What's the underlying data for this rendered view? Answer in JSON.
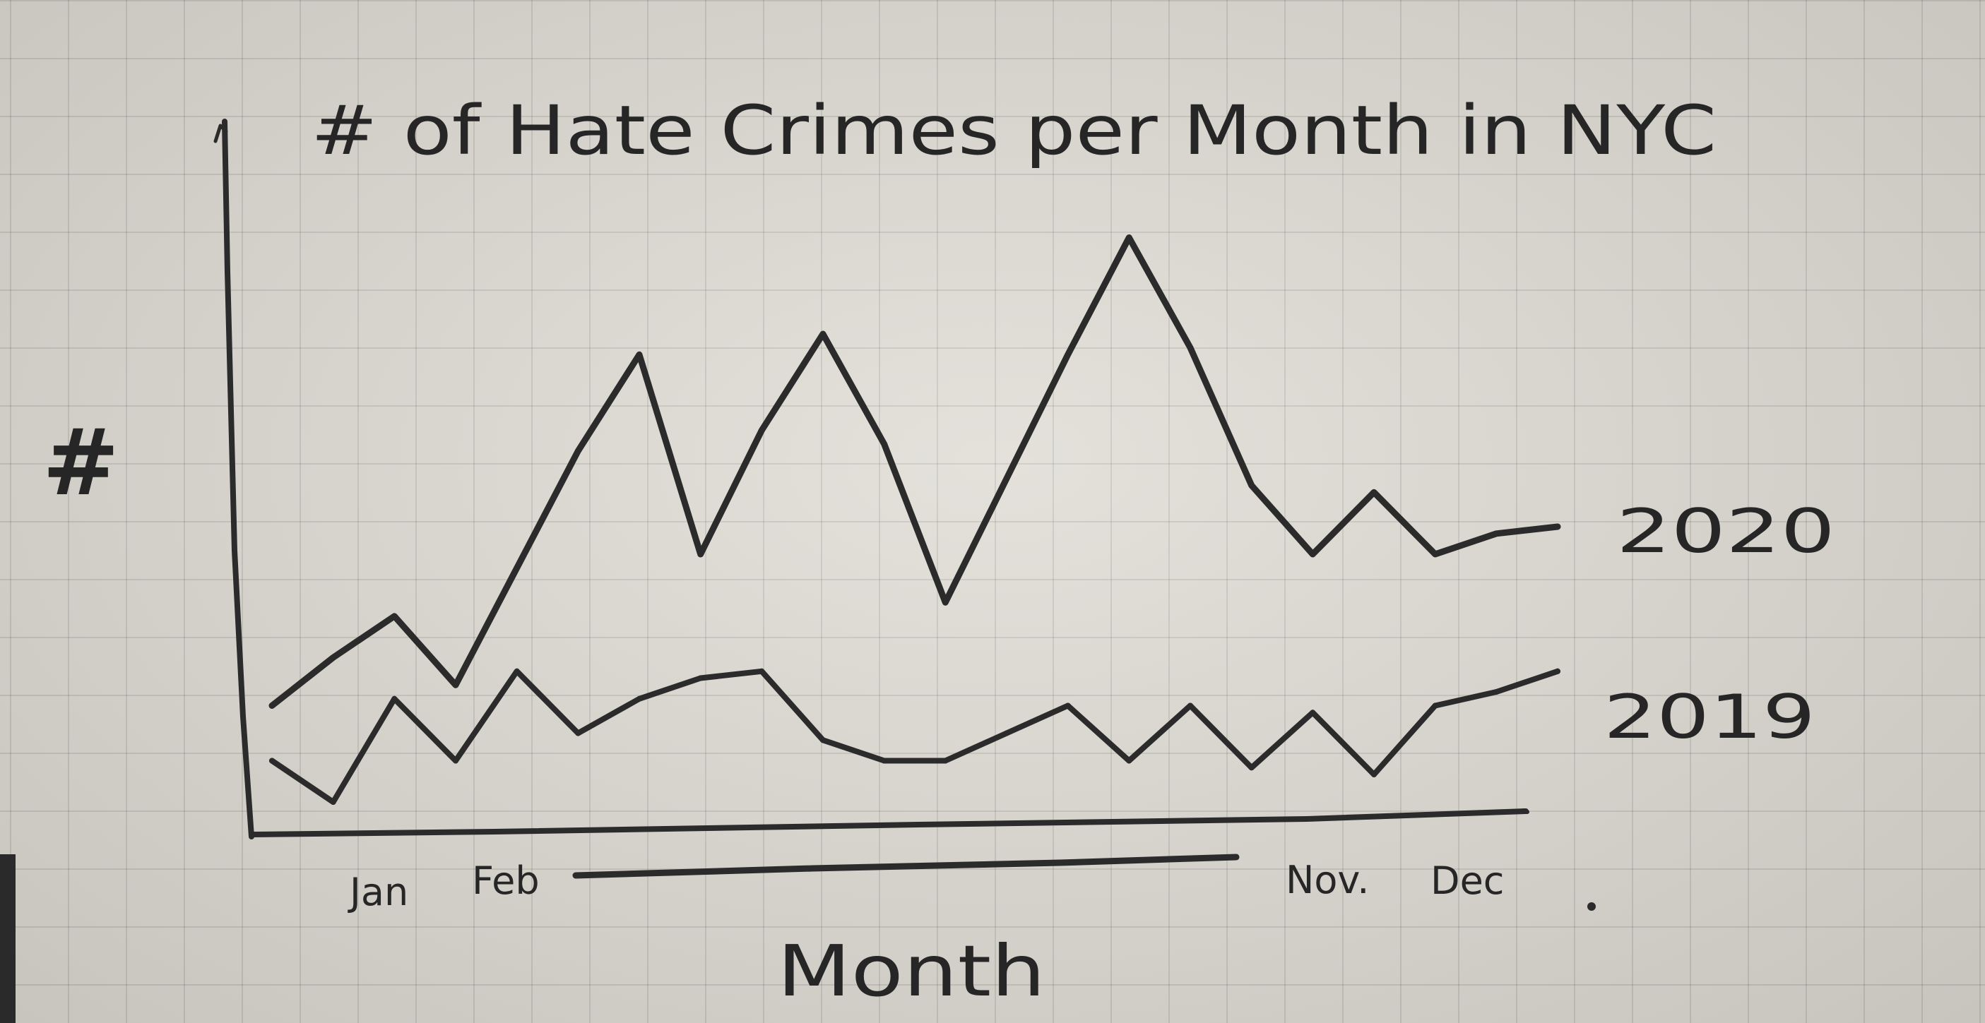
{
  "chart_data": {
    "type": "line",
    "title": "# of Hate Crimes per Month in NYC",
    "xlabel": "Month",
    "ylabel": "#",
    "x_ticks_shown": [
      "Jan",
      "Feb",
      "Nov.",
      "Dec"
    ],
    "x_count": 22,
    "ylim": [
      0,
      10
    ],
    "series": [
      {
        "name": "2020",
        "values": [
          1.8,
          2.5,
          3.1,
          2.1,
          3.8,
          5.5,
          6.9,
          4.0,
          5.8,
          7.2,
          5.6,
          3.3,
          5.1,
          6.9,
          8.6,
          7.0,
          5.0,
          4.0,
          4.9,
          4.0,
          4.3,
          4.4
        ]
      },
      {
        "name": "2019",
        "values": [
          1.0,
          0.4,
          1.9,
          1.0,
          2.3,
          1.4,
          1.9,
          2.2,
          2.3,
          1.3,
          1.0,
          1.0,
          1.4,
          1.8,
          1.0,
          1.8,
          0.9,
          1.7,
          0.8,
          1.8,
          2.0,
          2.3
        ]
      }
    ]
  },
  "colors": {
    "ink": "#2b2b2b",
    "paper": "#dedbd3"
  }
}
